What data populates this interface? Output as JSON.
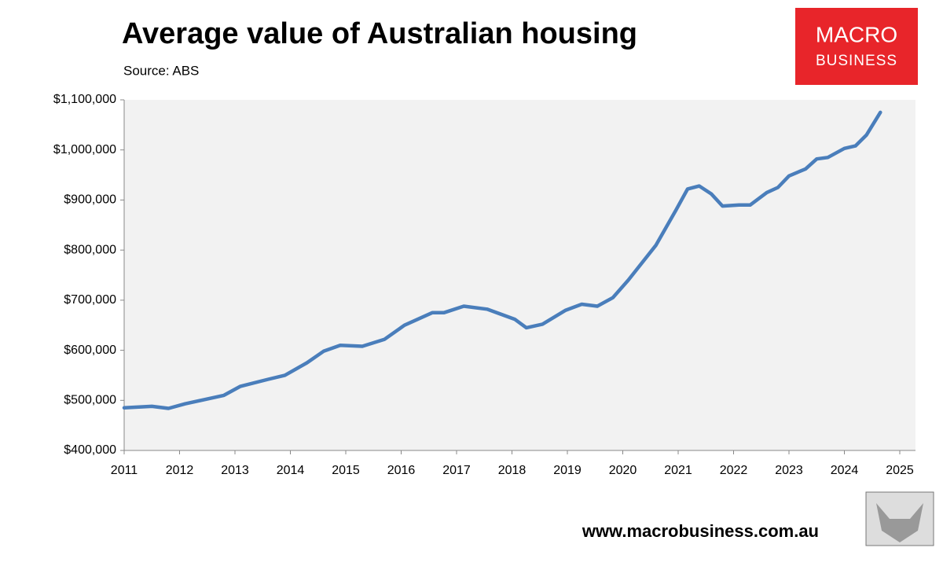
{
  "chart_data": {
    "type": "line",
    "title": "Average value of Australian housing",
    "subtitle": "Source: ABS",
    "logo": {
      "line1": "MACRO",
      "line2": "BUSINESS"
    },
    "footer": "www.macrobusiness.com.au",
    "x": [
      2011.0,
      2011.5,
      2011.8,
      2012.1,
      2012.8,
      2013.1,
      2013.6,
      2013.9,
      2014.3,
      2014.6,
      2014.9,
      2015.3,
      2015.7,
      2016.06,
      2016.56,
      2016.77,
      2017.13,
      2017.55,
      2018.05,
      2018.26,
      2018.55,
      2018.97,
      2019.26,
      2019.54,
      2019.82,
      2020.1,
      2020.6,
      2020.96,
      2021.17,
      2021.38,
      2021.6,
      2021.8,
      2022.1,
      2022.3,
      2022.6,
      2022.8,
      2023.0,
      2023.3,
      2023.5,
      2023.7,
      2024.0,
      2024.2,
      2024.4,
      2024.65
    ],
    "series": [
      {
        "name": "Average value",
        "color": "#4a7ebb",
        "values": [
          485000,
          488000,
          484000,
          493000,
          510000,
          528000,
          542000,
          550000,
          575000,
          598000,
          610000,
          608000,
          622000,
          650000,
          675000,
          675000,
          688000,
          682000,
          662000,
          645000,
          652000,
          680000,
          692000,
          688000,
          705000,
          740000,
          810000,
          880000,
          922000,
          928000,
          912000,
          888000,
          890000,
          890000,
          915000,
          925000,
          948000,
          962000,
          982000,
          985000,
          1003000,
          1008000,
          1030000,
          1075000
        ]
      }
    ],
    "xlim": [
      2011,
      2025
    ],
    "xticks": [
      2011,
      2012,
      2013,
      2014,
      2015,
      2016,
      2017,
      2018,
      2019,
      2020,
      2021,
      2022,
      2023,
      2024,
      2025
    ],
    "ylim": [
      400000,
      1100000
    ],
    "yticks": [
      {
        "value": 400000,
        "label": "$400,000"
      },
      {
        "value": 500000,
        "label": "$500,000"
      },
      {
        "value": 600000,
        "label": "$600,000"
      },
      {
        "value": 700000,
        "label": "$700,000"
      },
      {
        "value": 800000,
        "label": "$800,000"
      },
      {
        "value": 900000,
        "label": "$900,000"
      },
      {
        "value": 1000000,
        "label": "$1,000,000"
      },
      {
        "value": 1100000,
        "label": "$1,100,000"
      }
    ],
    "grid": false
  }
}
